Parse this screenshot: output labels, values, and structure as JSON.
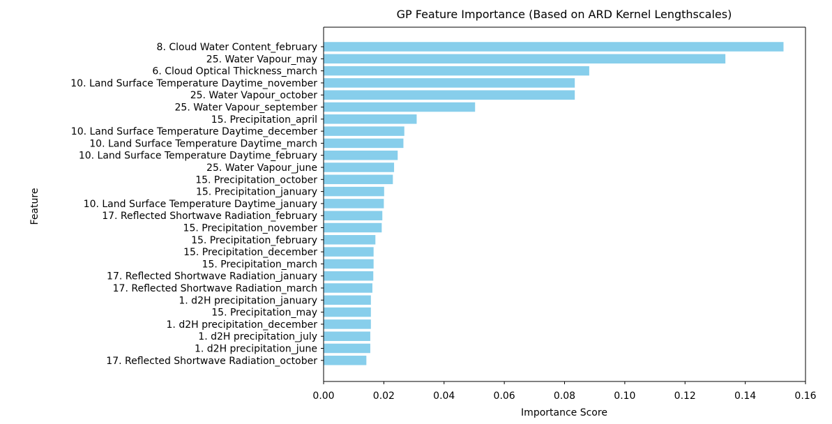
{
  "chart_data": {
    "type": "bar",
    "orientation": "horizontal",
    "title": "GP Feature Importance (Based on ARD Kernel Lengthscales)",
    "xlabel": "Importance Score",
    "ylabel": "Feature",
    "xlim": [
      0.0,
      0.16
    ],
    "xticks": [
      "0.00",
      "0.02",
      "0.04",
      "0.06",
      "0.08",
      "0.10",
      "0.12",
      "0.14",
      "0.16"
    ],
    "grid": false,
    "bar_color": "#87ceeb",
    "categories": [
      "8. Cloud Water Content_february",
      "25. Water Vapour_may",
      "6. Cloud Optical Thickness_march",
      "10. Land Surface Temperature Daytime_november",
      "25. Water Vapour_october",
      "25. Water Vapour_september",
      "15. Precipitation_april",
      "10. Land Surface Temperature Daytime_december",
      "10. Land Surface Temperature Daytime_march",
      "10. Land Surface Temperature Daytime_february",
      "25. Water Vapour_june",
      "15. Precipitation_october",
      "15. Precipitation_january",
      "10. Land Surface Temperature Daytime_january",
      "17. Reflected Shortwave Radiation_february",
      "15. Precipitation_november",
      "15. Precipitation_february",
      "15. Precipitation_december",
      "15. Precipitation_march",
      "17. Reflected Shortwave Radiation_january",
      "17. Reflected Shortwave Radiation_march",
      "1. d2H precipitation_january",
      "15. Precipitation_may",
      "1. d2H precipitation_december",
      "1. d2H precipitation_july",
      "1. d2H precipitation_june",
      "17. Reflected Shortwave Radiation_october"
    ],
    "values": [
      0.1527,
      0.1334,
      0.0882,
      0.0834,
      0.0834,
      0.0503,
      0.0309,
      0.0268,
      0.0265,
      0.0246,
      0.0234,
      0.023,
      0.0201,
      0.02,
      0.0195,
      0.0193,
      0.0172,
      0.0166,
      0.0166,
      0.0165,
      0.0162,
      0.0157,
      0.0157,
      0.0157,
      0.0155,
      0.0155,
      0.0142
    ]
  }
}
